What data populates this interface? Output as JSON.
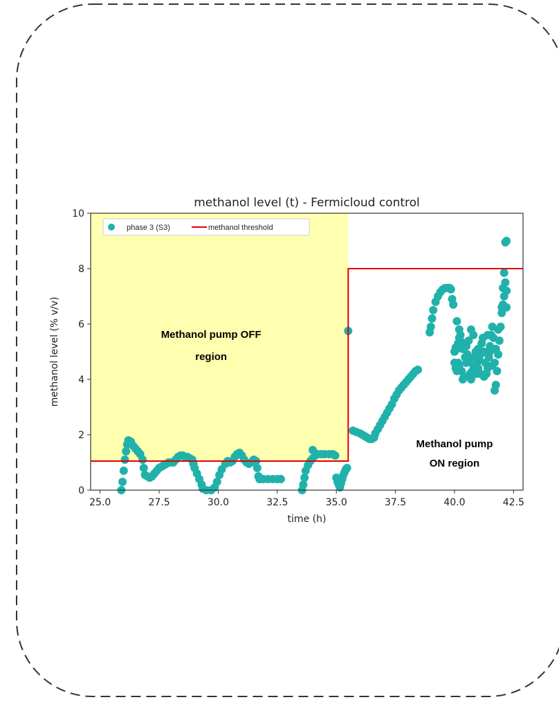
{
  "chart_data": {
    "type": "scatter",
    "title": "methanol level (t) - Fermicloud control",
    "xlabel": "time (h)",
    "ylabel": "methanol level (% v/v)",
    "xlim": [
      24.6,
      42.9
    ],
    "ylim": [
      0,
      10
    ],
    "x_ticks": [
      25.0,
      27.5,
      30.0,
      32.5,
      35.0,
      37.5,
      40.0,
      42.5
    ],
    "x_tick_labels": [
      "25.0",
      "27.5",
      "30.0",
      "32.5",
      "35.0",
      "37.5",
      "40.0",
      "42.5"
    ],
    "y_ticks": [
      0,
      2,
      4,
      6,
      8,
      10
    ],
    "y_tick_labels": [
      "0",
      "2",
      "4",
      "6",
      "8",
      "10"
    ],
    "grid": false,
    "legend_position": "top-left",
    "colors": {
      "points": "#20b2aa",
      "threshold": "#e00000",
      "off_region": "#ffffb0",
      "frame": "#333333"
    },
    "series": [
      {
        "name": "phase 3 (S3)",
        "kind": "scatter",
        "points": [
          [
            25.9,
            0.0
          ],
          [
            25.95,
            0.3
          ],
          [
            26.0,
            0.7
          ],
          [
            26.05,
            1.1
          ],
          [
            26.1,
            1.4
          ],
          [
            26.15,
            1.65
          ],
          [
            26.2,
            1.8
          ],
          [
            26.3,
            1.75
          ],
          [
            26.4,
            1.6
          ],
          [
            26.5,
            1.5
          ],
          [
            26.6,
            1.4
          ],
          [
            26.7,
            1.3
          ],
          [
            26.8,
            1.1
          ],
          [
            26.85,
            0.8
          ],
          [
            26.9,
            0.55
          ],
          [
            27.0,
            0.5
          ],
          [
            27.1,
            0.45
          ],
          [
            27.2,
            0.5
          ],
          [
            27.3,
            0.6
          ],
          [
            27.4,
            0.7
          ],
          [
            27.5,
            0.8
          ],
          [
            27.6,
            0.85
          ],
          [
            27.7,
            0.9
          ],
          [
            27.8,
            0.95
          ],
          [
            27.9,
            1.0
          ],
          [
            28.0,
            1.0
          ],
          [
            28.1,
            1.0
          ],
          [
            28.2,
            1.1
          ],
          [
            28.3,
            1.2
          ],
          [
            28.4,
            1.25
          ],
          [
            28.5,
            1.25
          ],
          [
            28.6,
            1.2
          ],
          [
            28.7,
            1.2
          ],
          [
            28.8,
            1.15
          ],
          [
            28.9,
            1.1
          ],
          [
            28.95,
            0.95
          ],
          [
            29.0,
            0.8
          ],
          [
            29.1,
            0.6
          ],
          [
            29.2,
            0.4
          ],
          [
            29.3,
            0.2
          ],
          [
            29.35,
            0.05
          ],
          [
            29.5,
            0.0
          ],
          [
            29.7,
            0.0
          ],
          [
            29.85,
            0.1
          ],
          [
            29.95,
            0.3
          ],
          [
            30.05,
            0.55
          ],
          [
            30.15,
            0.75
          ],
          [
            30.3,
            0.95
          ],
          [
            30.4,
            1.05
          ],
          [
            30.5,
            1.0
          ],
          [
            30.6,
            1.05
          ],
          [
            30.7,
            1.2
          ],
          [
            30.8,
            1.3
          ],
          [
            30.9,
            1.35
          ],
          [
            31.0,
            1.25
          ],
          [
            31.1,
            1.1
          ],
          [
            31.2,
            1.0
          ],
          [
            31.3,
            0.95
          ],
          [
            31.4,
            1.0
          ],
          [
            31.5,
            1.1
          ],
          [
            31.6,
            1.05
          ],
          [
            31.65,
            0.8
          ],
          [
            31.7,
            0.5
          ],
          [
            31.75,
            0.4
          ],
          [
            31.9,
            0.4
          ],
          [
            32.1,
            0.4
          ],
          [
            32.3,
            0.4
          ],
          [
            32.5,
            0.4
          ],
          [
            32.65,
            0.4
          ],
          [
            33.55,
            0.0
          ],
          [
            33.6,
            0.2
          ],
          [
            33.65,
            0.45
          ],
          [
            33.7,
            0.7
          ],
          [
            33.8,
            0.9
          ],
          [
            33.9,
            1.05
          ],
          [
            34.0,
            1.15
          ],
          [
            34.1,
            1.25
          ],
          [
            34.0,
            1.45
          ],
          [
            34.2,
            1.3
          ],
          [
            34.35,
            1.3
          ],
          [
            34.5,
            1.3
          ],
          [
            34.7,
            1.3
          ],
          [
            34.85,
            1.3
          ],
          [
            34.95,
            1.25
          ],
          [
            35.0,
            0.45
          ],
          [
            35.05,
            0.3
          ],
          [
            35.1,
            0.2
          ],
          [
            35.15,
            0.1
          ],
          [
            35.2,
            0.25
          ],
          [
            35.25,
            0.4
          ],
          [
            35.3,
            0.55
          ],
          [
            35.35,
            0.65
          ],
          [
            35.4,
            0.75
          ],
          [
            35.45,
            0.8
          ],
          [
            35.5,
            5.75
          ],
          [
            35.7,
            2.15
          ],
          [
            35.85,
            2.1
          ],
          [
            36.0,
            2.05
          ],
          [
            36.1,
            2.0
          ],
          [
            36.2,
            1.95
          ],
          [
            36.3,
            1.9
          ],
          [
            36.4,
            1.85
          ],
          [
            36.5,
            1.85
          ],
          [
            36.6,
            1.9
          ],
          [
            36.65,
            2.05
          ],
          [
            36.75,
            2.2
          ],
          [
            36.85,
            2.35
          ],
          [
            36.95,
            2.5
          ],
          [
            37.05,
            2.65
          ],
          [
            37.15,
            2.8
          ],
          [
            37.25,
            2.95
          ],
          [
            37.35,
            3.1
          ],
          [
            37.45,
            3.3
          ],
          [
            37.55,
            3.45
          ],
          [
            37.65,
            3.6
          ],
          [
            37.75,
            3.7
          ],
          [
            37.85,
            3.8
          ],
          [
            37.95,
            3.9
          ],
          [
            38.05,
            4.0
          ],
          [
            38.15,
            4.1
          ],
          [
            38.25,
            4.2
          ],
          [
            38.35,
            4.3
          ],
          [
            38.45,
            4.35
          ],
          [
            38.95,
            5.7
          ],
          [
            39.0,
            5.9
          ],
          [
            39.05,
            6.2
          ],
          [
            39.1,
            6.5
          ],
          [
            39.2,
            6.8
          ],
          [
            39.3,
            7.0
          ],
          [
            39.4,
            7.15
          ],
          [
            39.5,
            7.25
          ],
          [
            39.6,
            7.3
          ],
          [
            39.7,
            7.3
          ],
          [
            39.8,
            7.3
          ],
          [
            39.85,
            7.25
          ],
          [
            39.9,
            6.9
          ],
          [
            39.95,
            6.7
          ],
          [
            40.0,
            5.0
          ],
          [
            40.05,
            5.15
          ],
          [
            40.1,
            5.1
          ],
          [
            40.15,
            5.3
          ],
          [
            40.2,
            5.5
          ],
          [
            40.25,
            5.6
          ],
          [
            40.3,
            5.35
          ],
          [
            40.35,
            5.1
          ],
          [
            40.0,
            4.6
          ],
          [
            40.05,
            4.4
          ],
          [
            40.1,
            4.3
          ],
          [
            40.15,
            4.6
          ],
          [
            40.2,
            4.5
          ],
          [
            40.3,
            4.3
          ],
          [
            40.4,
            4.1
          ],
          [
            40.45,
            4.8
          ],
          [
            40.5,
            5.2
          ],
          [
            40.55,
            4.9
          ],
          [
            40.6,
            4.7
          ],
          [
            40.65,
            4.2
          ],
          [
            40.7,
            4.0
          ],
          [
            40.75,
            4.3
          ],
          [
            40.8,
            4.5
          ],
          [
            40.85,
            4.8
          ],
          [
            40.9,
            5.0
          ],
          [
            40.95,
            4.6
          ],
          [
            41.0,
            4.4
          ],
          [
            41.05,
            4.7
          ],
          [
            41.1,
            4.9
          ],
          [
            41.15,
            5.3
          ],
          [
            41.2,
            5.5
          ],
          [
            41.25,
            5.0
          ],
          [
            41.3,
            4.6
          ],
          [
            41.35,
            4.2
          ],
          [
            41.4,
            4.4
          ],
          [
            41.45,
            4.8
          ],
          [
            41.5,
            5.2
          ],
          [
            41.55,
            5.6
          ],
          [
            41.6,
            5.9
          ],
          [
            41.65,
            5.5
          ],
          [
            41.7,
            4.6
          ],
          [
            41.75,
            3.8
          ],
          [
            41.7,
            3.6
          ],
          [
            41.8,
            4.3
          ],
          [
            41.85,
            4.9
          ],
          [
            41.9,
            5.4
          ],
          [
            41.95,
            5.9
          ],
          [
            42.0,
            6.4
          ],
          [
            42.05,
            6.7
          ],
          [
            42.0,
            6.6
          ],
          [
            42.1,
            7.0
          ],
          [
            42.05,
            7.3
          ],
          [
            42.15,
            7.5
          ],
          [
            42.1,
            7.85
          ],
          [
            42.2,
            6.6
          ],
          [
            42.2,
            7.2
          ],
          [
            42.15,
            8.95
          ],
          [
            42.2,
            9.0
          ],
          [
            40.1,
            6.1
          ],
          [
            40.2,
            5.8
          ],
          [
            40.35,
            4.0
          ],
          [
            40.5,
            4.6
          ],
          [
            40.6,
            5.4
          ],
          [
            40.7,
            5.8
          ],
          [
            40.8,
            5.6
          ],
          [
            40.9,
            4.2
          ],
          [
            41.0,
            5.1
          ],
          [
            41.1,
            4.2
          ],
          [
            41.25,
            4.1
          ],
          [
            41.4,
            5.6
          ],
          [
            41.5,
            5.0
          ],
          [
            41.6,
            4.5
          ],
          [
            41.75,
            5.1
          ],
          [
            41.85,
            5.8
          ]
        ]
      },
      {
        "name": "methanol threshold",
        "kind": "step",
        "points": [
          [
            24.6,
            1.05
          ],
          [
            35.5,
            1.05
          ],
          [
            35.5,
            8.0
          ],
          [
            42.9,
            8.0
          ]
        ]
      }
    ],
    "annotations": [
      {
        "text": "Methanol pump OFF",
        "x": 29.7,
        "y": 5.5
      },
      {
        "text": "region",
        "x": 29.7,
        "y": 4.7
      },
      {
        "text": "Methanol pump",
        "x": 40.0,
        "y": 1.55
      },
      {
        "text": "ON region",
        "x": 40.0,
        "y": 0.85
      }
    ]
  }
}
